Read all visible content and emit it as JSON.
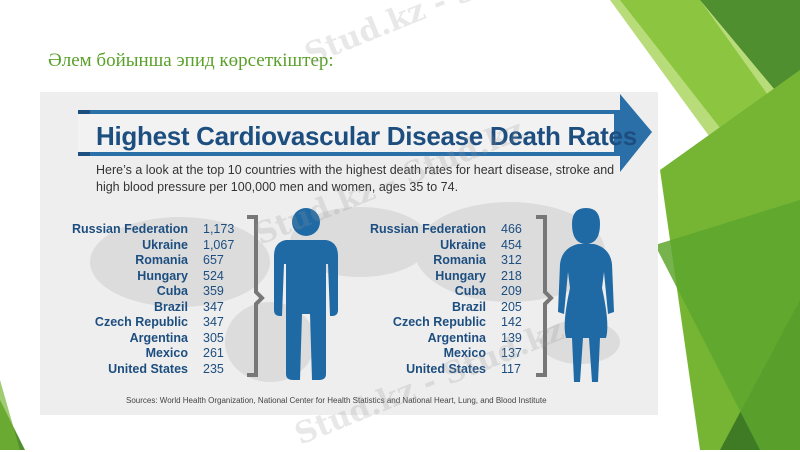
{
  "slide": {
    "title": "Әлем бойынша эпид көрсеткіштер:",
    "watermark": "Stud.kz - Stud.kz"
  },
  "infographic": {
    "heading": "Highest Cardiovascular Disease Death Rates",
    "subheading": "Here’s a look at the top 10 countries with the highest death rates for heart disease, stroke and high blood pressure per 100,000 men and women, ages 35 to 74.",
    "men": {
      "countries": [
        "Russian Federation",
        "Ukraine",
        "Romania",
        "Hungary",
        "Cuba",
        "Brazil",
        "Czech Republic",
        "Argentina",
        "Mexico",
        "United States"
      ],
      "values": [
        "1,173",
        "1,067",
        "657",
        "524",
        "359",
        "347",
        "347",
        "305",
        "261",
        "235"
      ]
    },
    "women": {
      "countries": [
        "Russian Federation",
        "Ukraine",
        "Romania",
        "Hungary",
        "Cuba",
        "Brazil",
        "Czech Republic",
        "Argentina",
        "Mexico",
        "United States"
      ],
      "values": [
        "466",
        "454",
        "312",
        "218",
        "209",
        "205",
        "142",
        "139",
        "137",
        "117"
      ]
    },
    "sources": "Sources: World Health Organization, National Center for Health Statistics and National Heart, Lung, and Blood Institute"
  },
  "colors": {
    "title_green": "#5aa12a",
    "heading_blue": "#1d4e80",
    "figure_blue": "#1f6aa5",
    "arrow_blue": "#2a6fa8",
    "bracket_gray": "#777777",
    "deco_green_dark": "#4f8f2f",
    "deco_green_light": "#9fcf4d"
  }
}
